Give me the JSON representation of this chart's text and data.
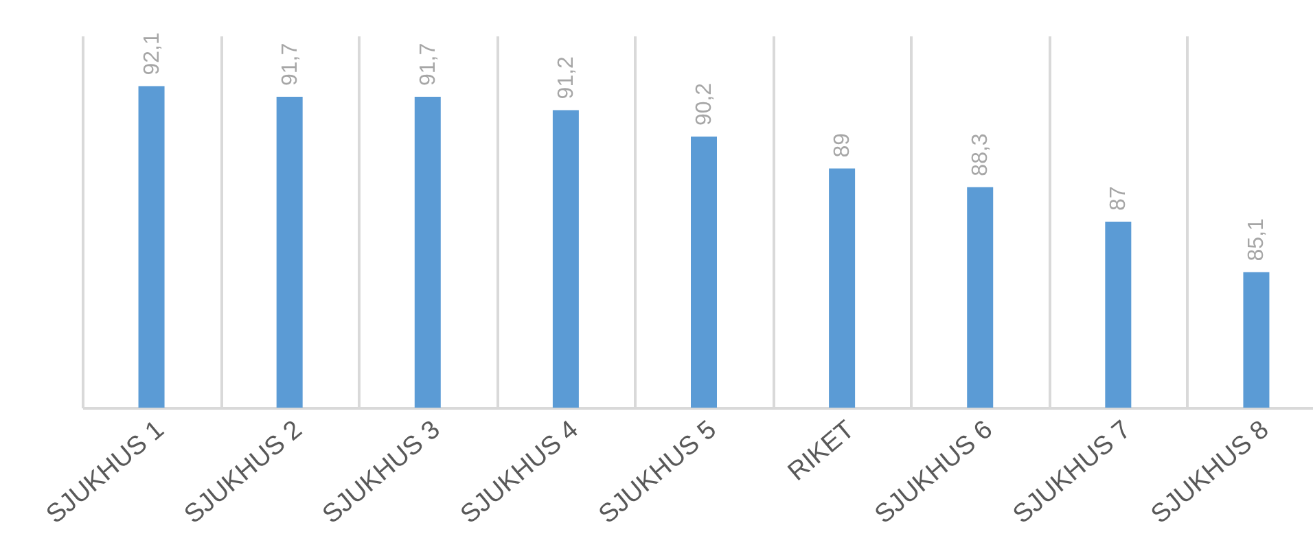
{
  "chart_data": {
    "type": "bar",
    "categories": [
      "SJUKHUS 1",
      "SJUKHUS 2",
      "SJUKHUS 3",
      "SJUKHUS 4",
      "SJUKHUS 5",
      "RIKET",
      "SJUKHUS 6",
      "SJUKHUS 7",
      "SJUKHUS 8"
    ],
    "values": [
      92.1,
      91.7,
      91.7,
      91.2,
      90.2,
      89,
      88.3,
      87,
      85.1
    ],
    "value_labels": [
      "92,1",
      "91,7",
      "91,7",
      "91,2",
      "90,2",
      "89",
      "88,3",
      "87",
      "85,1"
    ],
    "color": "#5b9bd5",
    "ylim": [
      80,
      94
    ],
    "grid": "x",
    "tick_labels": "x"
  }
}
